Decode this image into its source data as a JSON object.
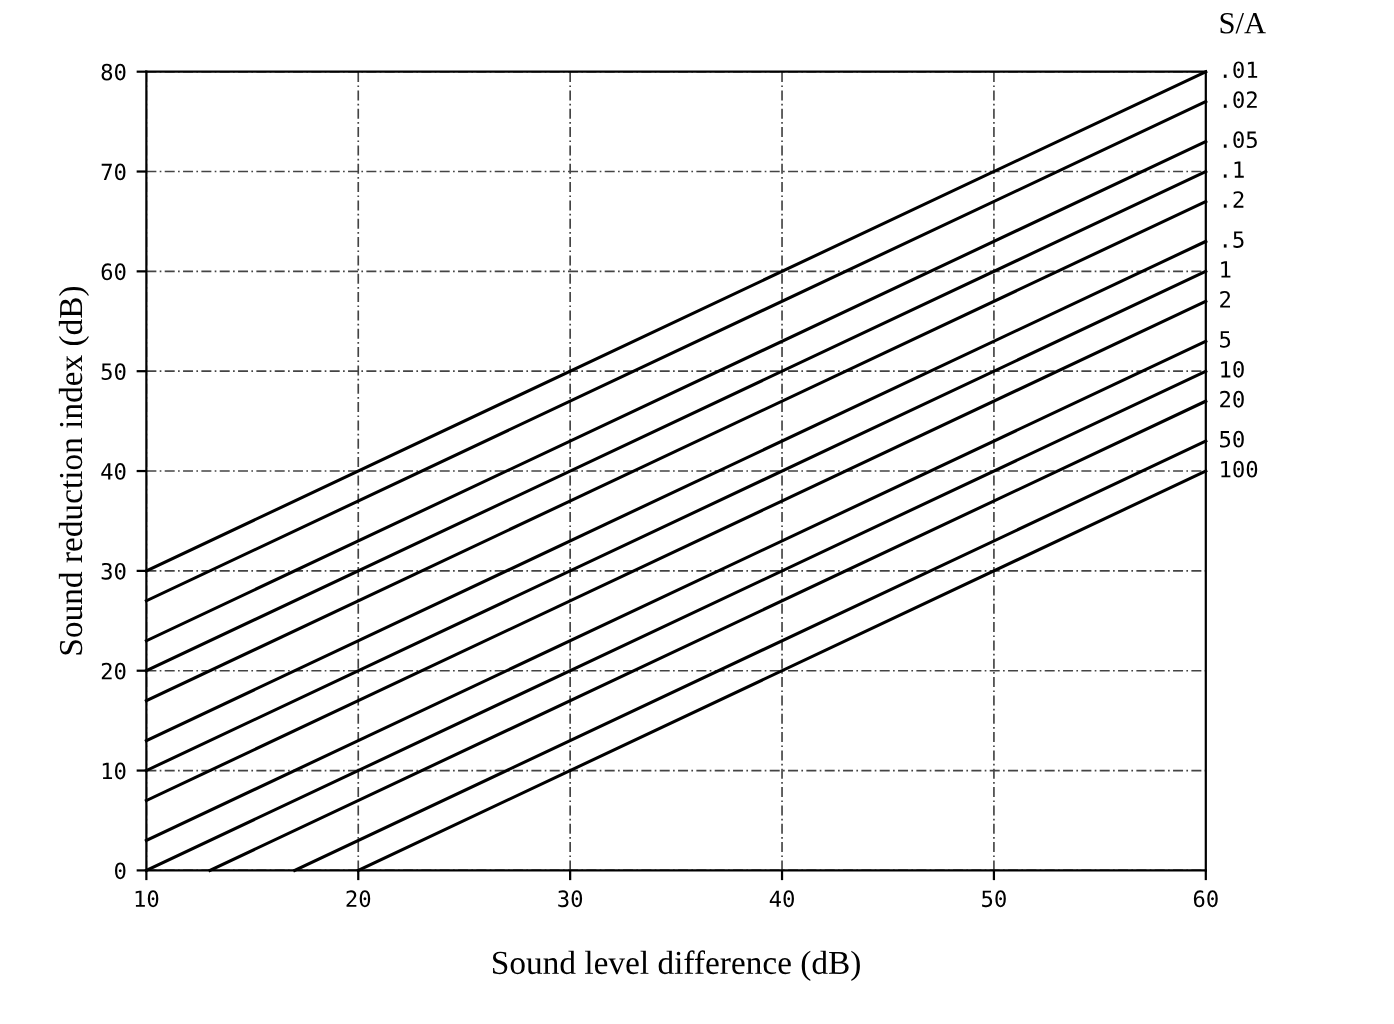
{
  "chart_data": {
    "type": "line",
    "xlabel": "Sound level difference (dB)",
    "ylabel": "Sound reduction index (dB)",
    "legend_title": "S/A",
    "xlim": [
      10,
      60
    ],
    "ylim": [
      0,
      80
    ],
    "xticks": [
      10,
      20,
      30,
      40,
      50,
      60
    ],
    "yticks": [
      0,
      10,
      20,
      30,
      40,
      50,
      60,
      70,
      80
    ],
    "grid": true,
    "legend": "right",
    "marker": "none",
    "line_style": "solid",
    "series": [
      {
        "name": ".01",
        "color": "#000000",
        "x": [
          10,
          60
        ],
        "values": [
          30,
          80
        ]
      },
      {
        "name": ".02",
        "color": "#000000",
        "x": [
          10,
          60
        ],
        "values": [
          27,
          77
        ]
      },
      {
        "name": ".05",
        "color": "#000000",
        "x": [
          10,
          60
        ],
        "values": [
          23,
          73
        ]
      },
      {
        "name": ".1",
        "color": "#000000",
        "x": [
          10,
          60
        ],
        "values": [
          20,
          70
        ]
      },
      {
        "name": ".2",
        "color": "#000000",
        "x": [
          10,
          60
        ],
        "values": [
          17,
          67
        ]
      },
      {
        "name": ".5",
        "color": "#000000",
        "x": [
          10,
          60
        ],
        "values": [
          13,
          63
        ]
      },
      {
        "name": "1",
        "color": "#000000",
        "x": [
          10,
          60
        ],
        "values": [
          10,
          60
        ]
      },
      {
        "name": "2",
        "color": "#000000",
        "x": [
          10,
          60
        ],
        "values": [
          7,
          57
        ]
      },
      {
        "name": "5",
        "color": "#000000",
        "x": [
          10,
          60
        ],
        "values": [
          3,
          53
        ]
      },
      {
        "name": "10",
        "color": "#000000",
        "x": [
          10,
          60
        ],
        "values": [
          0,
          50
        ]
      },
      {
        "name": "20",
        "color": "#000000",
        "x": [
          13,
          60
        ],
        "values": [
          0,
          47
        ]
      },
      {
        "name": "50",
        "color": "#000000",
        "x": [
          17,
          60
        ],
        "values": [
          0,
          43
        ]
      },
      {
        "name": "100",
        "color": "#000000",
        "x": [
          20,
          60
        ],
        "values": [
          0,
          40
        ]
      }
    ]
  }
}
